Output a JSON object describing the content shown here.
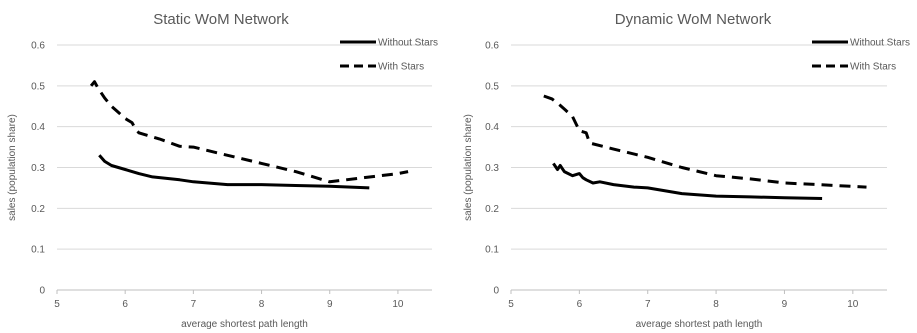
{
  "chart_data": [
    {
      "type": "line",
      "title": "Static WoM Network",
      "xlabel": "average shortest path length",
      "ylabel": "sales (population share)",
      "xlim": [
        5,
        10.5
      ],
      "ylim": [
        0,
        0.6
      ],
      "x_ticks": [
        "5",
        "6",
        "7",
        "8",
        "9",
        "10"
      ],
      "y_ticks": [
        "0",
        "0.1",
        "0.2",
        "0.3",
        "0.4",
        "0.5",
        "0.6"
      ],
      "grid": "horizontal",
      "legend": "top-right",
      "series": [
        {
          "name": "Without Stars",
          "style": "solid",
          "color": "#000000",
          "points": [
            [
              5.62,
              0.33
            ],
            [
              5.7,
              0.315
            ],
            [
              5.8,
              0.305
            ],
            [
              6.0,
              0.295
            ],
            [
              6.2,
              0.285
            ],
            [
              6.4,
              0.277
            ],
            [
              6.8,
              0.27
            ],
            [
              7.0,
              0.265
            ],
            [
              7.5,
              0.258
            ],
            [
              8.0,
              0.258
            ],
            [
              8.5,
              0.256
            ],
            [
              9.0,
              0.254
            ],
            [
              9.58,
              0.25
            ]
          ]
        },
        {
          "name": "With Stars",
          "style": "dashed",
          "color": "#000000",
          "points": [
            [
              5.5,
              0.5
            ],
            [
              5.55,
              0.51
            ],
            [
              5.6,
              0.495
            ],
            [
              5.7,
              0.47
            ],
            [
              5.8,
              0.45
            ],
            [
              5.9,
              0.435
            ],
            [
              6.0,
              0.42
            ],
            [
              6.1,
              0.41
            ],
            [
              6.15,
              0.395
            ],
            [
              6.2,
              0.385
            ],
            [
              6.5,
              0.37
            ],
            [
              6.8,
              0.352
            ],
            [
              7.0,
              0.35
            ],
            [
              7.5,
              0.33
            ],
            [
              8.0,
              0.31
            ],
            [
              8.5,
              0.29
            ],
            [
              9.0,
              0.265
            ],
            [
              9.5,
              0.275
            ],
            [
              10.0,
              0.285
            ],
            [
              10.15,
              0.29
            ]
          ]
        }
      ]
    },
    {
      "type": "line",
      "title": "Dynamic WoM Network",
      "xlabel": "average shortest path length",
      "ylabel": "sales (population share)",
      "xlim": [
        5,
        10.5
      ],
      "ylim": [
        0,
        0.6
      ],
      "x_ticks": [
        "5",
        "6",
        "7",
        "8",
        "9",
        "10"
      ],
      "y_ticks": [
        "0",
        "0.1",
        "0.2",
        "0.3",
        "0.4",
        "0.5",
        "0.6"
      ],
      "grid": "horizontal",
      "legend": "top-right",
      "series": [
        {
          "name": "Without Stars",
          "style": "solid",
          "color": "#000000",
          "points": [
            [
              5.62,
              0.31
            ],
            [
              5.68,
              0.295
            ],
            [
              5.72,
              0.305
            ],
            [
              5.78,
              0.29
            ],
            [
              5.9,
              0.28
            ],
            [
              6.0,
              0.285
            ],
            [
              6.05,
              0.275
            ],
            [
              6.1,
              0.27
            ],
            [
              6.2,
              0.262
            ],
            [
              6.3,
              0.265
            ],
            [
              6.5,
              0.258
            ],
            [
              6.8,
              0.252
            ],
            [
              7.0,
              0.25
            ],
            [
              7.5,
              0.236
            ],
            [
              8.0,
              0.23
            ],
            [
              8.5,
              0.228
            ],
            [
              9.0,
              0.226
            ],
            [
              9.55,
              0.224
            ]
          ]
        },
        {
          "name": "With Stars",
          "style": "dashed",
          "color": "#000000",
          "points": [
            [
              5.48,
              0.475
            ],
            [
              5.6,
              0.468
            ],
            [
              5.7,
              0.455
            ],
            [
              5.8,
              0.44
            ],
            [
              5.9,
              0.425
            ],
            [
              6.0,
              0.39
            ],
            [
              6.1,
              0.385
            ],
            [
              6.15,
              0.36
            ],
            [
              6.5,
              0.345
            ],
            [
              7.0,
              0.325
            ],
            [
              7.5,
              0.3
            ],
            [
              8.0,
              0.28
            ],
            [
              8.5,
              0.272
            ],
            [
              9.0,
              0.262
            ],
            [
              9.5,
              0.258
            ],
            [
              10.2,
              0.252
            ]
          ]
        }
      ]
    }
  ]
}
